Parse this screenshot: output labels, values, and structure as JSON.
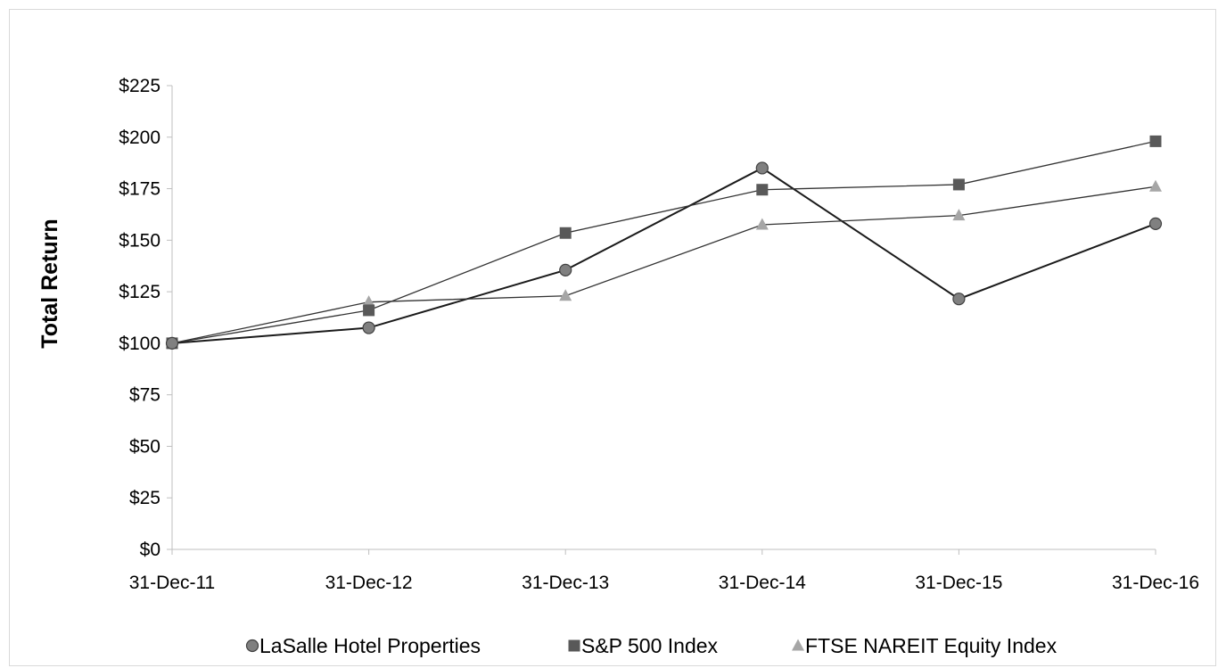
{
  "chart_data": {
    "type": "line",
    "title": "",
    "xlabel": "",
    "ylabel": "Total Return",
    "categories": [
      "31-Dec-11",
      "31-Dec-12",
      "31-Dec-13",
      "31-Dec-14",
      "31-Dec-15",
      "31-Dec-16"
    ],
    "yticks": [
      "$0",
      "$25",
      "$50",
      "$75",
      "$100",
      "$125",
      "$150",
      "$175",
      "$200",
      "$225"
    ],
    "ylim": [
      0,
      225
    ],
    "grid": false,
    "legend_position": "bottom",
    "series": [
      {
        "name": "LaSalle Hotel Properties",
        "marker": "circle",
        "color": "#808080",
        "line_color": "#1a1a1a",
        "values": [
          100,
          107.5,
          135.5,
          185,
          121.5,
          158
        ]
      },
      {
        "name": "S&P 500 Index",
        "marker": "square",
        "color": "#595959",
        "line_color": "#333333",
        "values": [
          100,
          116,
          153.5,
          174.5,
          177,
          198
        ]
      },
      {
        "name": "FTSE NAREIT Equity Index",
        "marker": "triangle",
        "color": "#a6a6a6",
        "line_color": "#333333",
        "values": [
          100,
          120,
          123,
          157.5,
          162,
          176
        ]
      }
    ]
  }
}
